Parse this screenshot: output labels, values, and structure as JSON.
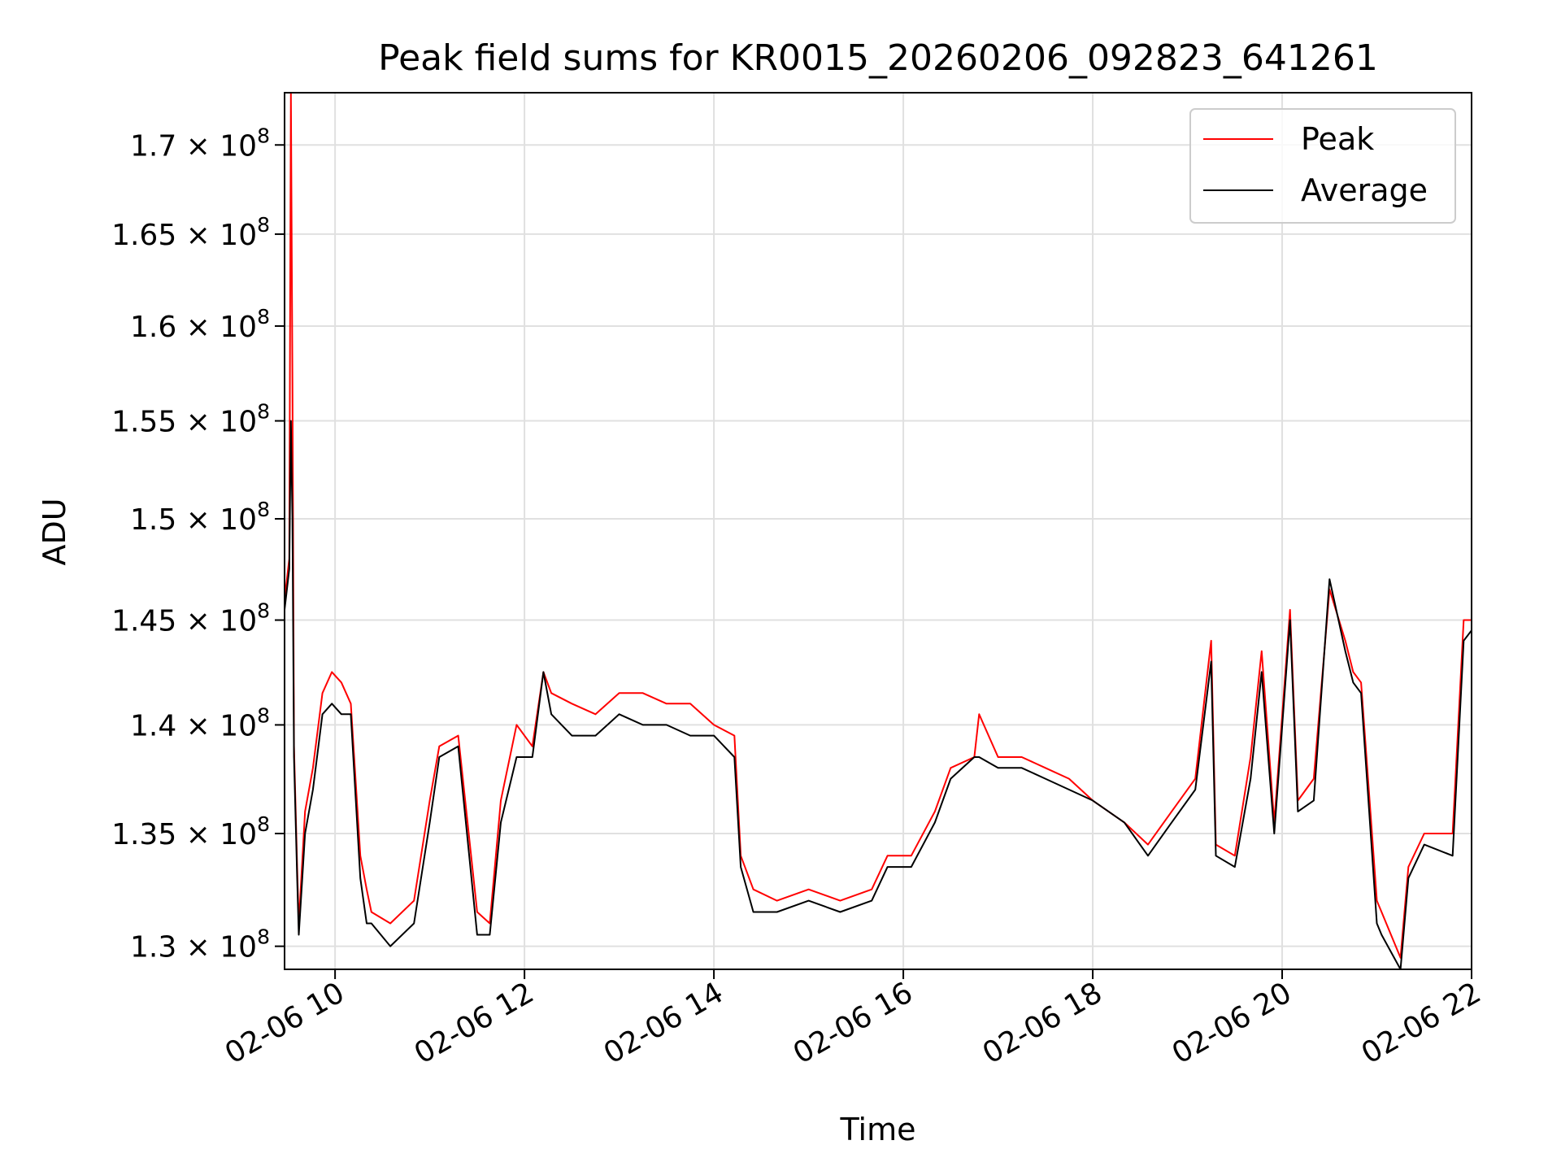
{
  "chart_data": {
    "type": "line",
    "title": "Peak field sums for KR0015_20260206_092823_641261",
    "xlabel": "Time",
    "ylabel": "ADU",
    "y_scale": "log",
    "xlim": [
      "2026-02-06 09:28",
      "2026-02-06 22:00"
    ],
    "ylim": [
      129000000,
      173000000
    ],
    "grid": true,
    "legend_position": "upper-right",
    "x_ticks": [
      {
        "value": "2026-02-06 10:00",
        "label": "02-06 10"
      },
      {
        "value": "2026-02-06 12:00",
        "label": "02-06 12"
      },
      {
        "value": "2026-02-06 14:00",
        "label": "02-06 14"
      },
      {
        "value": "2026-02-06 16:00",
        "label": "02-06 16"
      },
      {
        "value": "2026-02-06 18:00",
        "label": "02-06 18"
      },
      {
        "value": "2026-02-06 20:00",
        "label": "02-06 20"
      },
      {
        "value": "2026-02-06 22:00",
        "label": "02-06 22"
      }
    ],
    "y_ticks": [
      {
        "value": 130000000,
        "mantissa": "1.3",
        "exponent": "8"
      },
      {
        "value": 135000000,
        "mantissa": "1.35",
        "exponent": "8"
      },
      {
        "value": 140000000,
        "mantissa": "1.4",
        "exponent": "8"
      },
      {
        "value": 145000000,
        "mantissa": "1.45",
        "exponent": "8"
      },
      {
        "value": 150000000,
        "mantissa": "1.5",
        "exponent": "8"
      },
      {
        "value": 155000000,
        "mantissa": "1.55",
        "exponent": "8"
      },
      {
        "value": 160000000,
        "mantissa": "1.6",
        "exponent": "8"
      },
      {
        "value": 165000000,
        "mantissa": "1.65",
        "exponent": "8"
      },
      {
        "value": 170000000,
        "mantissa": "1.7",
        "exponent": "8"
      }
    ],
    "series": [
      {
        "name": "Peak",
        "color": "#ff0000",
        "x": [
          "2026-02-06 09:28",
          "2026-02-06 09:31",
          "2026-02-06 09:32",
          "2026-02-06 09:33",
          "2026-02-06 09:34",
          "2026-02-06 09:36",
          "2026-02-06 09:37",
          "2026-02-06 09:41",
          "2026-02-06 09:46",
          "2026-02-06 09:52",
          "2026-02-06 09:58",
          "2026-02-06 10:04",
          "2026-02-06 10:10",
          "2026-02-06 10:16",
          "2026-02-06 10:20",
          "2026-02-06 10:23",
          "2026-02-06 10:35",
          "2026-02-06 10:50",
          "2026-02-06 11:00",
          "2026-02-06 11:06",
          "2026-02-06 11:18",
          "2026-02-06 11:30",
          "2026-02-06 11:38",
          "2026-02-06 11:45",
          "2026-02-06 11:55",
          "2026-02-06 12:05",
          "2026-02-06 12:12",
          "2026-02-06 12:17",
          "2026-02-06 12:30",
          "2026-02-06 12:45",
          "2026-02-06 13:00",
          "2026-02-06 13:15",
          "2026-02-06 13:30",
          "2026-02-06 13:45",
          "2026-02-06 14:00",
          "2026-02-06 14:13",
          "2026-02-06 14:17",
          "2026-02-06 14:25",
          "2026-02-06 14:40",
          "2026-02-06 15:00",
          "2026-02-06 15:20",
          "2026-02-06 15:40",
          "2026-02-06 15:50",
          "2026-02-06 16:05",
          "2026-02-06 16:20",
          "2026-02-06 16:30",
          "2026-02-06 16:45",
          "2026-02-06 16:48",
          "2026-02-06 17:00",
          "2026-02-06 17:15",
          "2026-02-06 17:30",
          "2026-02-06 17:45",
          "2026-02-06 18:00",
          "2026-02-06 18:20",
          "2026-02-06 18:35",
          "2026-02-06 18:50",
          "2026-02-06 19:05",
          "2026-02-06 19:15",
          "2026-02-06 19:18",
          "2026-02-06 19:30",
          "2026-02-06 19:40",
          "2026-02-06 19:47",
          "2026-02-06 19:55",
          "2026-02-06 20:05",
          "2026-02-06 20:10",
          "2026-02-06 20:20",
          "2026-02-06 20:30",
          "2026-02-06 20:40",
          "2026-02-06 20:45",
          "2026-02-06 20:50",
          "2026-02-06 21:00",
          "2026-02-06 21:03",
          "2026-02-06 21:15",
          "2026-02-06 21:20",
          "2026-02-06 21:30",
          "2026-02-06 21:48",
          "2026-02-06 21:55",
          "2026-02-06 22:00"
        ],
        "values": [
          146000000,
          148000000,
          173000000,
          157000000,
          139000000,
          133500000,
          131000000,
          136000000,
          138000000,
          141500000,
          142500000,
          142000000,
          141000000,
          134000000,
          132500000,
          131500000,
          131000000,
          132000000,
          136500000,
          139000000,
          139500000,
          131500000,
          131000000,
          136500000,
          140000000,
          139000000,
          142500000,
          141500000,
          141000000,
          140500000,
          141500000,
          141500000,
          141000000,
          141000000,
          140000000,
          139500000,
          134000000,
          132500000,
          132000000,
          132500000,
          132000000,
          132500000,
          134000000,
          134000000,
          136000000,
          138000000,
          138500000,
          140500000,
          138500000,
          138500000,
          138000000,
          137500000,
          136500000,
          135500000,
          134500000,
          136000000,
          137500000,
          144000000,
          134500000,
          134000000,
          138500000,
          143500000,
          135500000,
          145500000,
          136500000,
          137500000,
          146500000,
          144000000,
          142500000,
          142000000,
          132000000,
          131500000,
          129500000,
          133500000,
          135000000,
          135000000,
          145000000,
          145000000
        ]
      },
      {
        "name": "Average",
        "color": "#000000",
        "x": [
          "2026-02-06 09:28",
          "2026-02-06 09:31",
          "2026-02-06 09:32",
          "2026-02-06 09:33",
          "2026-02-06 09:34",
          "2026-02-06 09:36",
          "2026-02-06 09:37",
          "2026-02-06 09:41",
          "2026-02-06 09:46",
          "2026-02-06 09:52",
          "2026-02-06 09:58",
          "2026-02-06 10:04",
          "2026-02-06 10:10",
          "2026-02-06 10:16",
          "2026-02-06 10:20",
          "2026-02-06 10:23",
          "2026-02-06 10:35",
          "2026-02-06 10:50",
          "2026-02-06 11:00",
          "2026-02-06 11:06",
          "2026-02-06 11:18",
          "2026-02-06 11:30",
          "2026-02-06 11:38",
          "2026-02-06 11:45",
          "2026-02-06 11:55",
          "2026-02-06 12:05",
          "2026-02-06 12:12",
          "2026-02-06 12:17",
          "2026-02-06 12:30",
          "2026-02-06 12:45",
          "2026-02-06 13:00",
          "2026-02-06 13:15",
          "2026-02-06 13:30",
          "2026-02-06 13:45",
          "2026-02-06 14:00",
          "2026-02-06 14:13",
          "2026-02-06 14:17",
          "2026-02-06 14:25",
          "2026-02-06 14:40",
          "2026-02-06 15:00",
          "2026-02-06 15:20",
          "2026-02-06 15:40",
          "2026-02-06 15:50",
          "2026-02-06 16:05",
          "2026-02-06 16:20",
          "2026-02-06 16:30",
          "2026-02-06 16:45",
          "2026-02-06 16:48",
          "2026-02-06 17:00",
          "2026-02-06 17:15",
          "2026-02-06 17:30",
          "2026-02-06 17:45",
          "2026-02-06 18:00",
          "2026-02-06 18:20",
          "2026-02-06 18:35",
          "2026-02-06 18:50",
          "2026-02-06 19:05",
          "2026-02-06 19:15",
          "2026-02-06 19:18",
          "2026-02-06 19:30",
          "2026-02-06 19:40",
          "2026-02-06 19:47",
          "2026-02-06 19:55",
          "2026-02-06 20:05",
          "2026-02-06 20:10",
          "2026-02-06 20:20",
          "2026-02-06 20:30",
          "2026-02-06 20:40",
          "2026-02-06 20:45",
          "2026-02-06 20:50",
          "2026-02-06 21:00",
          "2026-02-06 21:03",
          "2026-02-06 21:15",
          "2026-02-06 21:20",
          "2026-02-06 21:30",
          "2026-02-06 21:48",
          "2026-02-06 21:55",
          "2026-02-06 22:00"
        ],
        "values": [
          145500000,
          147500000,
          155000000,
          150000000,
          138500000,
          133000000,
          130500000,
          135000000,
          137000000,
          140500000,
          141000000,
          140500000,
          140500000,
          133000000,
          131000000,
          131000000,
          130000000,
          131000000,
          135500000,
          138500000,
          139000000,
          130500000,
          130500000,
          135500000,
          138500000,
          138500000,
          142500000,
          140500000,
          139500000,
          139500000,
          140500000,
          140000000,
          140000000,
          139500000,
          139500000,
          138500000,
          133500000,
          131500000,
          131500000,
          132000000,
          131500000,
          132000000,
          133500000,
          133500000,
          135500000,
          137500000,
          138500000,
          138500000,
          138000000,
          138000000,
          137500000,
          137000000,
          136500000,
          135500000,
          134000000,
          135500000,
          137000000,
          143000000,
          134000000,
          133500000,
          137500000,
          142500000,
          135000000,
          145000000,
          136000000,
          136500000,
          147000000,
          143500000,
          142000000,
          141500000,
          131000000,
          130500000,
          129000000,
          133000000,
          134500000,
          134000000,
          144000000,
          144500000
        ]
      }
    ]
  }
}
